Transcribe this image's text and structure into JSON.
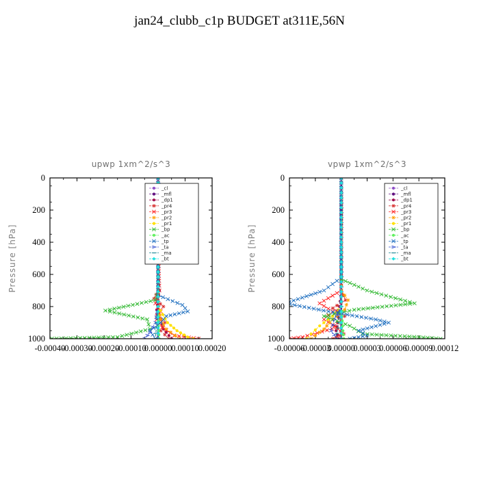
{
  "title": "jan24_clubb_c1p  BUDGET at311E,56N",
  "chart_data": [
    {
      "type": "line",
      "title": "upwp   1xm^2/s^3",
      "ylabel": "Pressure [hPa]",
      "xlim": [
        -0.0004,
        0.0002
      ],
      "ylim": [
        1000,
        0
      ],
      "xticks": [
        "-0.00040",
        "-0.00030",
        "-0.00020",
        "-0.00010",
        "0.00000",
        "0.00010",
        "0.00020"
      ],
      "xtick_values": [
        -0.0004,
        -0.0003,
        -0.0002,
        -0.0001,
        0.0,
        0.0001,
        0.0002
      ],
      "yticks": [
        0,
        200,
        400,
        600,
        800,
        1000
      ],
      "legend_position": "top-right",
      "series": [
        {
          "name": "_cl",
          "color": "#9050c8",
          "marker": "dot",
          "pressure": [
            0,
            200,
            400,
            600,
            700,
            800,
            900,
            1000
          ],
          "values": [
            0,
            0,
            0,
            0,
            0,
            0,
            0,
            0
          ]
        },
        {
          "name": "_mfl",
          "color": "#601080",
          "marker": "dot",
          "pressure": [
            0,
            200,
            400,
            600,
            700,
            800,
            900,
            1000
          ],
          "values": [
            0,
            0,
            0,
            0,
            0,
            0,
            0,
            0
          ]
        },
        {
          "name": "_dp1",
          "color": "#a01050",
          "marker": "dot",
          "pressure": [
            0,
            200,
            400,
            600,
            700,
            760,
            820,
            880,
            940,
            1000
          ],
          "values": [
            0,
            0,
            0,
            0,
            5e-06,
            0,
            -5e-06,
            1e-05,
            2e-05,
            5e-05
          ]
        },
        {
          "name": "_pr4",
          "color": "#d83030",
          "marker": "star",
          "pressure": [
            0,
            400,
            700,
            750,
            800,
            850,
            900,
            950,
            1000
          ],
          "values": [
            0,
            0,
            0,
            -1.5e-05,
            2e-05,
            -5e-06,
            2.5e-05,
            1e-05,
            4e-05
          ]
        },
        {
          "name": "_pr3",
          "color": "#ff2020",
          "marker": "x",
          "pressure": [
            0,
            400,
            700,
            780,
            830,
            880,
            930,
            980,
            1000
          ],
          "values": [
            0,
            0,
            5e-06,
            -1e-05,
            1e-05,
            -5e-06,
            1.5e-05,
            6e-05,
            0.00015
          ]
        },
        {
          "name": "_pr2",
          "color": "#ffa000",
          "marker": "star",
          "pressure": [
            0,
            400,
            800,
            880,
            940,
            1000
          ],
          "values": [
            0,
            0,
            0,
            1e-05,
            3e-05,
            8e-05
          ]
        },
        {
          "name": "_pr1",
          "color": "#ffe000",
          "marker": "dot",
          "pressure": [
            0,
            400,
            800,
            900,
            950,
            990,
            1000
          ],
          "values": [
            0,
            0,
            0,
            3.5e-05,
            7e-05,
            0.00011,
            0.00013
          ]
        },
        {
          "name": "_bp",
          "color": "#30b830",
          "marker": "x",
          "pressure": [
            0,
            600,
            700,
            760,
            825,
            880,
            940,
            990,
            1000
          ],
          "values": [
            0,
            0,
            0,
            -1e-05,
            -0.000195,
            -4e-05,
            -3e-05,
            -0.00015,
            -0.00041
          ]
        },
        {
          "name": "_ac",
          "color": "#60f060",
          "marker": "dot",
          "pressure": [
            0,
            400,
            800,
            950,
            1000
          ],
          "values": [
            0,
            0,
            0,
            2e-06,
            4e-06
          ]
        },
        {
          "name": "_tp",
          "color": "#2070c0",
          "marker": "x",
          "pressure": [
            0,
            600,
            730,
            790,
            830,
            860,
            900,
            950,
            1000
          ],
          "values": [
            0,
            0,
            0,
            9e-05,
            0.00011,
            3e-05,
            1e-05,
            -3e-05,
            -1e-05
          ]
        },
        {
          "name": "_ta",
          "color": "#3050d0",
          "marker": "arrow",
          "pressure": [
            0,
            400,
            800,
            900,
            960,
            1000
          ],
          "values": [
            0,
            0,
            0,
            -1e-05,
            -3e-05,
            -5e-05
          ]
        },
        {
          "name": "_ma",
          "color": "#108090",
          "marker": "dash",
          "pressure": [
            0,
            400,
            800,
            900,
            1000
          ],
          "values": [
            0,
            0,
            0,
            -5e-06,
            -1e-05
          ]
        },
        {
          "name": "_bt",
          "color": "#20e0e0",
          "marker": "diamond",
          "pressure": [
            0,
            400,
            800,
            900,
            1000
          ],
          "values": [
            0,
            0,
            0,
            0,
            0
          ]
        }
      ]
    },
    {
      "type": "line",
      "title": "vpwp   1xm^2/s^3",
      "ylabel": "Pressure [hPa]",
      "xlim": [
        -6e-05,
        0.00012
      ],
      "ylim": [
        1000,
        0
      ],
      "xticks": [
        "-0.00006",
        "-0.00003",
        "0.00000",
        "0.00003",
        "0.00006",
        "0.00009",
        "0.00012"
      ],
      "xtick_values": [
        -6e-05,
        -3e-05,
        0.0,
        3e-05,
        6e-05,
        9e-05,
        0.00012
      ],
      "yticks": [
        0,
        200,
        400,
        600,
        800,
        1000
      ],
      "legend_position": "top-right",
      "series": [
        {
          "name": "_cl",
          "color": "#9050c8",
          "marker": "dot",
          "pressure": [
            0,
            200,
            400,
            600,
            700,
            800,
            900,
            1000
          ],
          "values": [
            0,
            0,
            0,
            0,
            0,
            0,
            0,
            0
          ]
        },
        {
          "name": "_mfl",
          "color": "#601080",
          "marker": "dot",
          "pressure": [
            0,
            200,
            400,
            600,
            700,
            800,
            900,
            1000
          ],
          "values": [
            0,
            0,
            0,
            0,
            0,
            0,
            0,
            0
          ]
        },
        {
          "name": "_dp1",
          "color": "#a01050",
          "marker": "dot",
          "pressure": [
            0,
            400,
            700,
            800,
            900,
            950,
            1000
          ],
          "values": [
            0,
            0,
            0,
            -2e-06,
            -4e-06,
            -6e-06,
            -3e-06
          ]
        },
        {
          "name": "_pr4",
          "color": "#d83030",
          "marker": "star",
          "pressure": [
            0,
            400,
            700,
            760,
            810,
            860,
            920,
            970,
            1000
          ],
          "values": [
            0,
            0,
            0,
            5e-06,
            -1e-05,
            4e-06,
            -8e-06,
            3e-06,
            -1e-05
          ]
        },
        {
          "name": "_pr3",
          "color": "#ff2020",
          "marker": "x",
          "pressure": [
            0,
            400,
            700,
            780,
            830,
            880,
            930,
            990,
            1000
          ],
          "values": [
            0,
            0,
            0,
            -2.5e-05,
            -1e-05,
            -2e-05,
            -5e-06,
            -4.5e-05,
            -6e-05
          ]
        },
        {
          "name": "_pr2",
          "color": "#ffa000",
          "marker": "star",
          "pressure": [
            0,
            400,
            700,
            760,
            820,
            880,
            940,
            1000
          ],
          "values": [
            0,
            0,
            0,
            8e-06,
            4e-06,
            -1e-05,
            -2e-05,
            -3.5e-05
          ]
        },
        {
          "name": "_pr1",
          "color": "#ffe000",
          "marker": "dot",
          "pressure": [
            0,
            400,
            800,
            860,
            920,
            970,
            1000
          ],
          "values": [
            0,
            0,
            0,
            -1e-05,
            -2.5e-05,
            -3.5e-05,
            -4e-05
          ]
        },
        {
          "name": "_bp",
          "color": "#30b830",
          "marker": "x",
          "pressure": [
            0,
            600,
            630,
            700,
            780,
            820,
            860,
            920,
            970,
            990,
            1000
          ],
          "values": [
            0,
            0,
            0,
            3e-05,
            8.5e-05,
            1.5e-05,
            -2e-05,
            1e-05,
            2.5e-05,
            9e-05,
            0.000115
          ]
        },
        {
          "name": "_ac",
          "color": "#60f060",
          "marker": "dot",
          "pressure": [
            0,
            400,
            800,
            950,
            1000
          ],
          "values": [
            0,
            0,
            0,
            2e-06,
            3e-06
          ]
        },
        {
          "name": "_tp",
          "color": "#2070c0",
          "marker": "x",
          "pressure": [
            0,
            600,
            620,
            700,
            780,
            830,
            880,
            900,
            950,
            980,
            1000
          ],
          "values": [
            0,
            0,
            0,
            -2e-05,
            -6.5e-05,
            -1.5e-05,
            4e-05,
            5.5e-05,
            2e-05,
            3e-05,
            1e-05
          ]
        },
        {
          "name": "_ta",
          "color": "#3050d0",
          "marker": "arrow",
          "pressure": [
            0,
            400,
            800,
            880,
            950,
            1000
          ],
          "values": [
            0,
            0,
            0,
            -8e-06,
            -1.2e-05,
            -5e-06
          ]
        },
        {
          "name": "_ma",
          "color": "#108090",
          "marker": "dash",
          "pressure": [
            0,
            400,
            800,
            900,
            1000
          ],
          "values": [
            0,
            0,
            0,
            -3e-06,
            -6e-06
          ]
        },
        {
          "name": "_bt",
          "color": "#20e0e0",
          "marker": "diamond",
          "pressure": [
            0,
            400,
            800,
            900,
            1000
          ],
          "values": [
            0,
            0,
            0,
            0,
            0
          ]
        }
      ]
    }
  ]
}
